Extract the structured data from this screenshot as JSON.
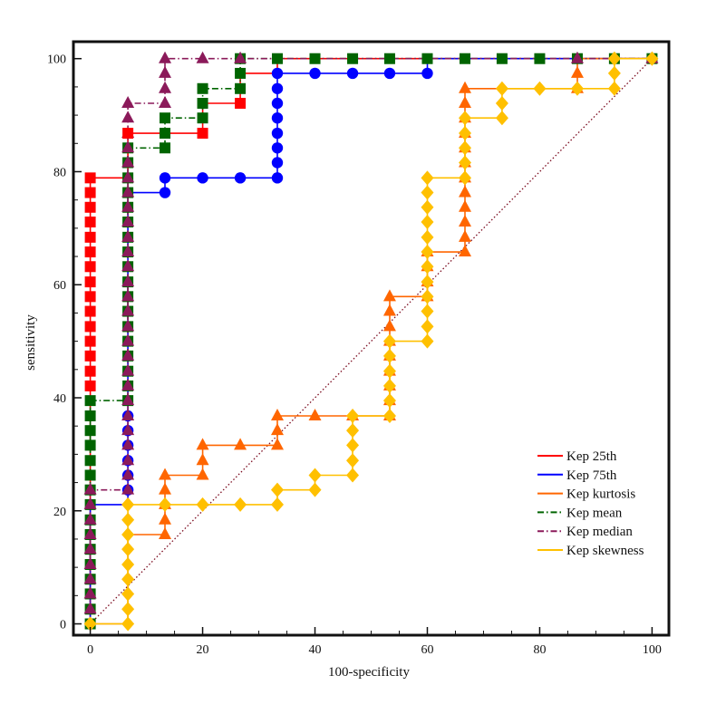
{
  "chart_data": {
    "type": "line",
    "title": "",
    "xlabel": "100-specificity",
    "ylabel": "sensitivity",
    "xlim": [
      -3,
      103
    ],
    "ylim": [
      -2,
      103
    ],
    "x_ticks": [
      0,
      20,
      40,
      60,
      80,
      100
    ],
    "y_ticks": [
      0,
      20,
      40,
      60,
      80,
      100
    ],
    "grid": false,
    "legend_position": "bottom-right",
    "reference_line": {
      "x": [
        0,
        100
      ],
      "y": [
        0,
        100
      ],
      "color": "#7a0a1e",
      "style": "dotted"
    },
    "series": [
      {
        "name": "Kep 25th",
        "color": "#ff0000",
        "marker": "square",
        "line": "solid",
        "x": [
          0,
          0,
          6.7,
          6.7,
          20,
          20,
          26.7,
          26.7,
          33.3,
          33.3,
          100
        ],
        "y": [
          0,
          78.9,
          78.9,
          86.8,
          86.8,
          92.1,
          92.1,
          97.4,
          97.4,
          100,
          100
        ],
        "points": [
          [
            0,
            42.1
          ],
          [
            0,
            44.7
          ],
          [
            0,
            47.4
          ],
          [
            0,
            50
          ],
          [
            0,
            52.6
          ],
          [
            0,
            55.3
          ],
          [
            0,
            57.9
          ],
          [
            0,
            60.5
          ],
          [
            0,
            63.2
          ],
          [
            0,
            65.8
          ],
          [
            0,
            68.4
          ],
          [
            0,
            71.1
          ],
          [
            0,
            73.7
          ],
          [
            0,
            76.3
          ],
          [
            0,
            78.9
          ],
          [
            6.7,
            86.8
          ],
          [
            20,
            86.8
          ],
          [
            26.7,
            92.1
          ]
        ]
      },
      {
        "name": "Kep 75th",
        "color": "#0000ff",
        "marker": "circle",
        "line": "solid",
        "x": [
          0,
          0,
          6.7,
          6.7,
          13.3,
          13.3,
          33.3,
          33.3,
          60,
          60,
          100
        ],
        "y": [
          0,
          21.1,
          21.1,
          76.3,
          76.3,
          78.9,
          78.9,
          97.4,
          97.4,
          100,
          100
        ],
        "points": [
          [
            6.7,
            23.7
          ],
          [
            6.7,
            26.3
          ],
          [
            6.7,
            28.9
          ],
          [
            6.7,
            31.6
          ],
          [
            6.7,
            34.2
          ],
          [
            6.7,
            36.8
          ],
          [
            13.3,
            76.3
          ],
          [
            13.3,
            78.9
          ],
          [
            20,
            78.9
          ],
          [
            26.7,
            78.9
          ],
          [
            33.3,
            78.9
          ],
          [
            33.3,
            81.6
          ],
          [
            33.3,
            84.2
          ],
          [
            33.3,
            86.8
          ],
          [
            33.3,
            89.5
          ],
          [
            33.3,
            92.1
          ],
          [
            33.3,
            94.7
          ],
          [
            33.3,
            97.4
          ],
          [
            40,
            97.4
          ],
          [
            46.7,
            97.4
          ],
          [
            53.3,
            97.4
          ],
          [
            60,
            97.4
          ]
        ]
      },
      {
        "name": "Kep kurtosis",
        "color": "#ff6600",
        "marker": "triangle",
        "line": "solid",
        "x": [
          0,
          6.7,
          6.7,
          13.3,
          13.3,
          20,
          20,
          33.3,
          33.3,
          46.7,
          46.7,
          53.3,
          53.3,
          60,
          60,
          66.7,
          66.7,
          86.7,
          86.7,
          100
        ],
        "y": [
          0,
          0,
          15.8,
          15.8,
          26.3,
          26.3,
          31.6,
          31.6,
          36.8,
          36.8,
          36.8,
          36.8,
          57.9,
          57.9,
          65.8,
          65.8,
          94.7,
          94.7,
          100,
          100
        ],
        "points": [
          [
            13.3,
            15.8
          ],
          [
            13.3,
            18.4
          ],
          [
            13.3,
            21.1
          ],
          [
            13.3,
            23.7
          ],
          [
            13.3,
            26.3
          ],
          [
            20,
            26.3
          ],
          [
            20,
            28.9
          ],
          [
            20,
            31.6
          ],
          [
            26.7,
            31.6
          ],
          [
            33.3,
            31.6
          ],
          [
            33.3,
            34.2
          ],
          [
            33.3,
            36.8
          ],
          [
            40,
            36.8
          ],
          [
            46.7,
            36.8
          ],
          [
            53.3,
            36.8
          ],
          [
            53.3,
            39.5
          ],
          [
            53.3,
            42.1
          ],
          [
            53.3,
            44.7
          ],
          [
            53.3,
            47.4
          ],
          [
            53.3,
            50
          ],
          [
            53.3,
            52.6
          ],
          [
            53.3,
            55.3
          ],
          [
            53.3,
            57.9
          ],
          [
            60,
            57.9
          ],
          [
            60,
            60.5
          ],
          [
            60,
            63.2
          ],
          [
            60,
            65.8
          ],
          [
            66.7,
            65.8
          ],
          [
            66.7,
            68.4
          ],
          [
            66.7,
            71.1
          ],
          [
            66.7,
            73.7
          ],
          [
            66.7,
            76.3
          ],
          [
            66.7,
            78.9
          ],
          [
            66.7,
            81.6
          ],
          [
            66.7,
            84.2
          ],
          [
            66.7,
            86.8
          ],
          [
            66.7,
            89.5
          ],
          [
            66.7,
            92.1
          ],
          [
            66.7,
            94.7
          ],
          [
            86.7,
            94.7
          ],
          [
            86.7,
            97.4
          ]
        ]
      },
      {
        "name": "Kep mean",
        "color": "#006400",
        "marker": "square",
        "line": "dashdot",
        "x": [
          0,
          0,
          6.7,
          6.7,
          13.3,
          13.3,
          20,
          20,
          26.7,
          26.7,
          100
        ],
        "y": [
          0,
          39.5,
          39.5,
          84.2,
          84.2,
          89.5,
          89.5,
          94.7,
          94.7,
          100,
          100
        ],
        "points": [
          [
            0,
            0
          ],
          [
            0,
            2.6
          ],
          [
            0,
            5.3
          ],
          [
            0,
            7.9
          ],
          [
            0,
            10.5
          ],
          [
            0,
            13.2
          ],
          [
            0,
            15.8
          ],
          [
            0,
            18.4
          ],
          [
            0,
            21.1
          ],
          [
            0,
            23.7
          ],
          [
            0,
            26.3
          ],
          [
            0,
            28.9
          ],
          [
            0,
            31.6
          ],
          [
            0,
            34.2
          ],
          [
            0,
            36.8
          ],
          [
            0,
            39.5
          ],
          [
            6.7,
            39.5
          ],
          [
            6.7,
            42.1
          ],
          [
            6.7,
            44.7
          ],
          [
            6.7,
            47.4
          ],
          [
            6.7,
            50
          ],
          [
            6.7,
            52.6
          ],
          [
            6.7,
            55.3
          ],
          [
            6.7,
            57.9
          ],
          [
            6.7,
            60.5
          ],
          [
            6.7,
            63.2
          ],
          [
            6.7,
            65.8
          ],
          [
            6.7,
            68.4
          ],
          [
            6.7,
            71.1
          ],
          [
            6.7,
            73.7
          ],
          [
            6.7,
            76.3
          ],
          [
            6.7,
            78.9
          ],
          [
            6.7,
            81.6
          ],
          [
            6.7,
            84.2
          ],
          [
            13.3,
            84.2
          ],
          [
            13.3,
            86.8
          ],
          [
            13.3,
            89.5
          ],
          [
            20,
            89.5
          ],
          [
            20,
            92.1
          ],
          [
            20,
            94.7
          ],
          [
            26.7,
            94.7
          ],
          [
            26.7,
            97.4
          ],
          [
            26.7,
            100
          ],
          [
            33.3,
            100
          ],
          [
            40,
            100
          ],
          [
            46.7,
            100
          ],
          [
            53.3,
            100
          ],
          [
            60,
            100
          ],
          [
            66.7,
            100
          ],
          [
            73.3,
            100
          ],
          [
            80,
            100
          ],
          [
            86.7,
            100
          ],
          [
            93.3,
            100
          ],
          [
            100,
            100
          ]
        ]
      },
      {
        "name": "Kep median",
        "color": "#8b1a5a",
        "marker": "triangle",
        "line": "dashdot",
        "x": [
          0,
          0,
          6.7,
          6.7,
          13.3,
          13.3,
          100
        ],
        "y": [
          0,
          23.7,
          23.7,
          92.1,
          92.1,
          100,
          100
        ],
        "points": [
          [
            0,
            2.6
          ],
          [
            0,
            5.3
          ],
          [
            0,
            7.9
          ],
          [
            0,
            10.5
          ],
          [
            0,
            13.2
          ],
          [
            0,
            15.8
          ],
          [
            0,
            18.4
          ],
          [
            0,
            21.1
          ],
          [
            0,
            23.7
          ],
          [
            6.7,
            23.7
          ],
          [
            6.7,
            26.3
          ],
          [
            6.7,
            28.9
          ],
          [
            6.7,
            31.6
          ],
          [
            6.7,
            34.2
          ],
          [
            6.7,
            36.8
          ],
          [
            6.7,
            39.5
          ],
          [
            6.7,
            42.1
          ],
          [
            6.7,
            44.7
          ],
          [
            6.7,
            47.4
          ],
          [
            6.7,
            50
          ],
          [
            6.7,
            52.6
          ],
          [
            6.7,
            55.3
          ],
          [
            6.7,
            57.9
          ],
          [
            6.7,
            60.5
          ],
          [
            6.7,
            63.2
          ],
          [
            6.7,
            65.8
          ],
          [
            6.7,
            68.4
          ],
          [
            6.7,
            71.1
          ],
          [
            6.7,
            73.7
          ],
          [
            6.7,
            76.3
          ],
          [
            6.7,
            78.9
          ],
          [
            6.7,
            81.6
          ],
          [
            6.7,
            84.2
          ],
          [
            6.7,
            86.8
          ],
          [
            6.7,
            89.5
          ],
          [
            6.7,
            92.1
          ],
          [
            13.3,
            92.1
          ],
          [
            13.3,
            94.7
          ],
          [
            13.3,
            97.4
          ],
          [
            13.3,
            100
          ],
          [
            20,
            100
          ],
          [
            26.7,
            100
          ],
          [
            86.7,
            100
          ],
          [
            100,
            100
          ]
        ]
      },
      {
        "name": "Kep skewness",
        "color": "#ffc000",
        "marker": "diamond",
        "line": "solid",
        "x": [
          0,
          6.7,
          6.7,
          33.3,
          33.3,
          40,
          40,
          46.7,
          46.7,
          53.3,
          53.3,
          60,
          60,
          66.7,
          66.7,
          73.3,
          73.3,
          93.3,
          93.3,
          100
        ],
        "y": [
          0,
          0,
          21.1,
          21.1,
          23.7,
          23.7,
          26.3,
          26.3,
          36.8,
          36.8,
          50,
          50,
          78.9,
          78.9,
          89.5,
          89.5,
          94.7,
          94.7,
          100,
          100
        ],
        "points": [
          [
            0,
            0
          ],
          [
            6.7,
            0
          ],
          [
            6.7,
            2.6
          ],
          [
            6.7,
            5.3
          ],
          [
            6.7,
            7.9
          ],
          [
            6.7,
            10.5
          ],
          [
            6.7,
            13.2
          ],
          [
            6.7,
            15.8
          ],
          [
            6.7,
            18.4
          ],
          [
            6.7,
            21.1
          ],
          [
            13.3,
            21.1
          ],
          [
            20,
            21.1
          ],
          [
            26.7,
            21.1
          ],
          [
            33.3,
            21.1
          ],
          [
            33.3,
            23.7
          ],
          [
            40,
            23.7
          ],
          [
            40,
            26.3
          ],
          [
            46.7,
            26.3
          ],
          [
            46.7,
            28.9
          ],
          [
            46.7,
            31.6
          ],
          [
            46.7,
            34.2
          ],
          [
            46.7,
            36.8
          ],
          [
            53.3,
            36.8
          ],
          [
            53.3,
            39.5
          ],
          [
            53.3,
            42.1
          ],
          [
            53.3,
            44.7
          ],
          [
            53.3,
            47.4
          ],
          [
            53.3,
            50
          ],
          [
            60,
            50
          ],
          [
            60,
            52.6
          ],
          [
            60,
            55.3
          ],
          [
            60,
            57.9
          ],
          [
            60,
            60.5
          ],
          [
            60,
            63.2
          ],
          [
            60,
            65.8
          ],
          [
            60,
            68.4
          ],
          [
            60,
            71.1
          ],
          [
            60,
            73.7
          ],
          [
            60,
            76.3
          ],
          [
            60,
            78.9
          ],
          [
            66.7,
            78.9
          ],
          [
            66.7,
            81.6
          ],
          [
            66.7,
            84.2
          ],
          [
            66.7,
            86.8
          ],
          [
            66.7,
            89.5
          ],
          [
            73.3,
            89.5
          ],
          [
            73.3,
            92.1
          ],
          [
            73.3,
            94.7
          ],
          [
            80,
            94.7
          ],
          [
            86.7,
            94.7
          ],
          [
            93.3,
            94.7
          ],
          [
            93.3,
            97.4
          ],
          [
            93.3,
            100
          ],
          [
            100,
            100
          ]
        ]
      }
    ]
  }
}
